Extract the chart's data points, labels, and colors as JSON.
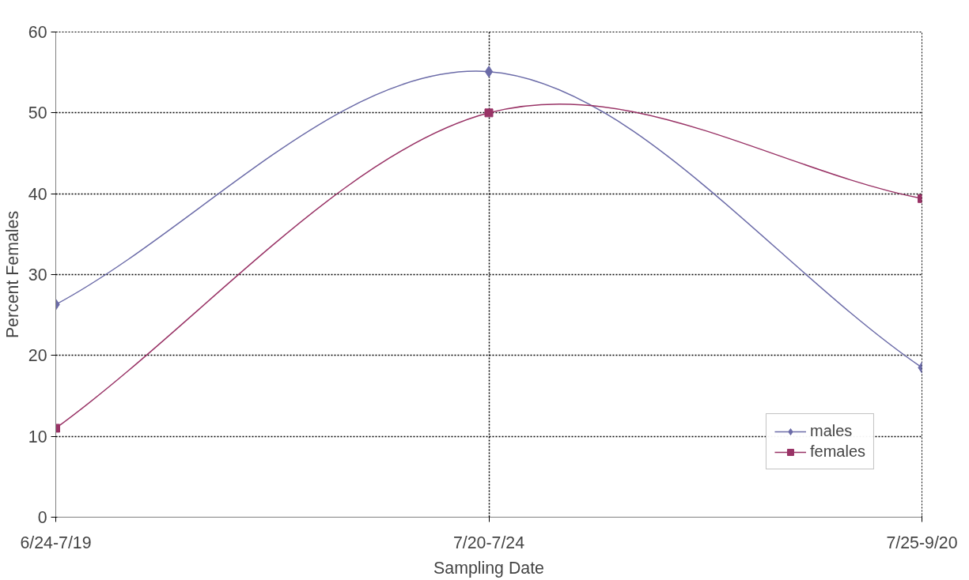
{
  "chart_data": {
    "type": "line",
    "xlabel": "Sampling Date",
    "ylabel": "Percent Females",
    "categories": [
      "6/24-7/19",
      "7/20-7/24",
      "7/25-9/20"
    ],
    "series": [
      {
        "name": "males",
        "color": "#6b6ba8",
        "values": [
          26.3,
          55.1,
          18.5
        ],
        "marker": "diamond"
      },
      {
        "name": "females",
        "color": "#993366",
        "values": [
          11.0,
          50.0,
          39.4
        ],
        "marker": "square"
      }
    ],
    "ylim": [
      0,
      60
    ],
    "yticks": [
      0,
      10,
      20,
      30,
      40,
      50,
      60
    ],
    "grid": true,
    "legend": "bottom right",
    "line_style": "solid"
  }
}
